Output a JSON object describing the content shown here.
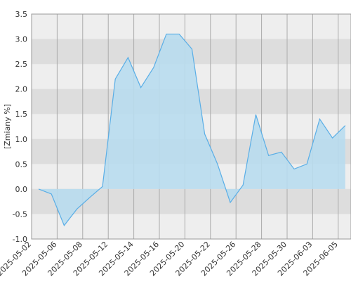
{
  "chart_data": {
    "type": "area",
    "y_label": "[Zmiany %]",
    "categories": [
      "2025-05-02",
      null,
      "2025-05-06",
      null,
      "2025-05-08",
      null,
      "2025-05-12",
      null,
      "2025-05-14",
      null,
      "2025-05-16",
      null,
      "2025-05-20",
      null,
      "2025-05-22",
      null,
      "2025-05-26",
      null,
      "2025-05-28",
      null,
      "2025-05-30",
      null,
      "2025-06-03",
      null,
      "2025-06-05"
    ],
    "values": [
      0,
      -0.1,
      -0.73,
      -0.4,
      -0.17,
      0.05,
      2.2,
      2.63,
      2.03,
      2.43,
      3.1,
      3.1,
      2.8,
      1.1,
      0.5,
      -0.27,
      0.08,
      1.49,
      0.67,
      0.74,
      0.4,
      0.5,
      1.4,
      1.02,
      1.27
    ],
    "color": "#5aaee6",
    "fill": "#b8dcee",
    "ylim": [
      -1.0,
      3.5
    ],
    "yticks": [
      {
        "value": -1,
        "label": "-1.0"
      },
      {
        "value": -0.5,
        "label": "-0.5"
      },
      {
        "value": 0,
        "label": "0.0"
      },
      {
        "value": 0.5,
        "label": "0.5"
      },
      {
        "value": 1,
        "label": "1.0"
      },
      {
        "value": 1.5,
        "label": "1.5"
      },
      {
        "value": 2,
        "label": "2.0"
      },
      {
        "value": 2.5,
        "label": "2.5"
      },
      {
        "value": 3,
        "label": "3.0"
      },
      {
        "value": 3.5,
        "label": "3.5"
      }
    ],
    "grid": true
  }
}
